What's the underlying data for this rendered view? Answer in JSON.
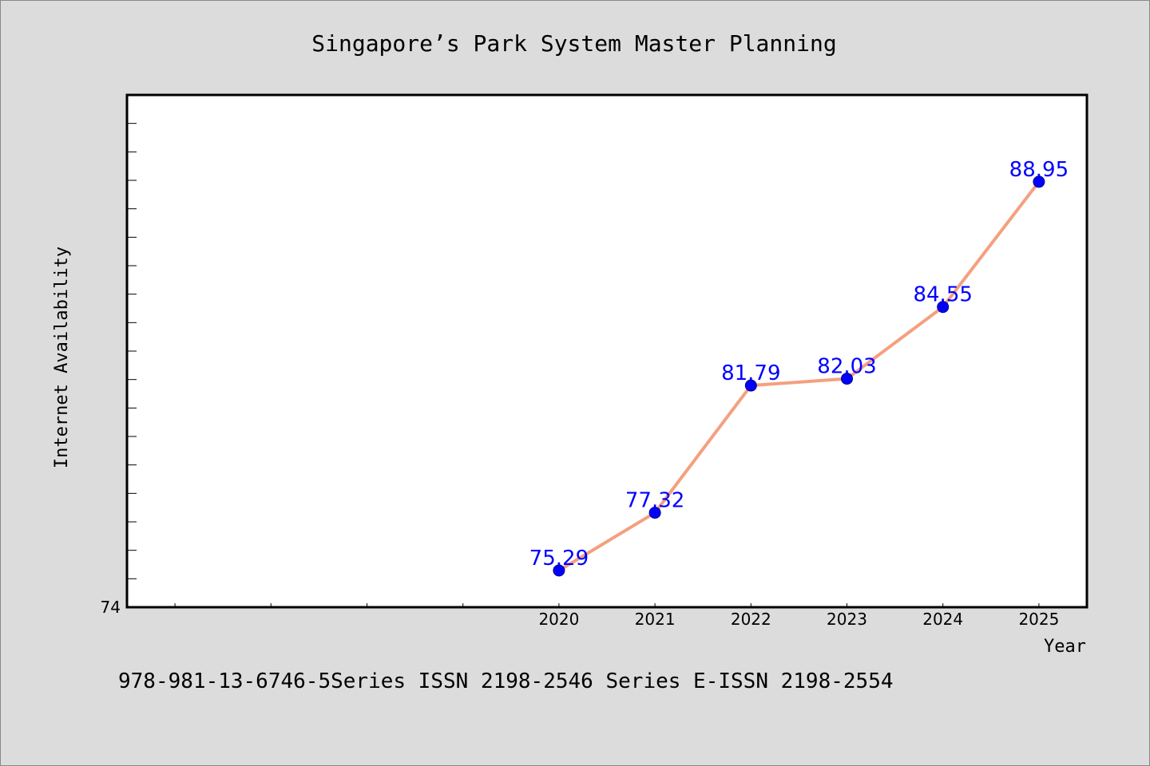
{
  "chart_data": {
    "type": "line",
    "title": "Singapore’s Park System Master Planning",
    "xlabel": "Year",
    "ylabel": "Internet Availability",
    "x": [
      2020,
      2021,
      2022,
      2023,
      2024,
      2025
    ],
    "x_tick_labels": [
      "2020",
      "2021",
      "2022",
      "2023",
      "2024",
      "2025"
    ],
    "series": [
      {
        "values": [
          75.29,
          77.32,
          81.79,
          82.03,
          84.55,
          88.95
        ]
      }
    ],
    "data_labels": [
      "75.29",
      "77.32",
      "81.79",
      "82.03",
      "84.55",
      "88.95"
    ],
    "xlim": [
      2015.5,
      2025.5
    ],
    "ylim": [
      74,
      92
    ],
    "y_tick_labels": [
      "74"
    ],
    "grid": false,
    "line_color": "#f4a07f",
    "marker_color": "#0000ff",
    "label_color": "#0000ff",
    "plot_background": "#ffffff",
    "page_background": "#dcdcdc"
  },
  "footnote": "978-981-13-6746-5Series ISSN 2198-2546 Series E-ISSN 2198-2554"
}
